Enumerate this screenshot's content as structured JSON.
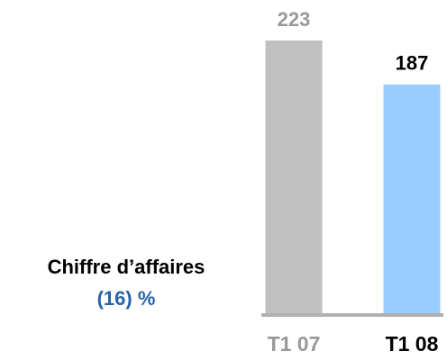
{
  "chart_data": {
    "type": "bar",
    "categories": [
      "T1 07",
      "T1 08"
    ],
    "values": [
      223,
      187
    ],
    "colors": [
      "#c0c0c0",
      "#99ccff"
    ],
    "label_colors": [
      "#999999",
      "#000000"
    ],
    "annotations": [
      {
        "text": "Chiffre d’affaires",
        "color": "#000000"
      },
      {
        "text": "(16) %",
        "color": "#2a62a6"
      }
    ]
  }
}
